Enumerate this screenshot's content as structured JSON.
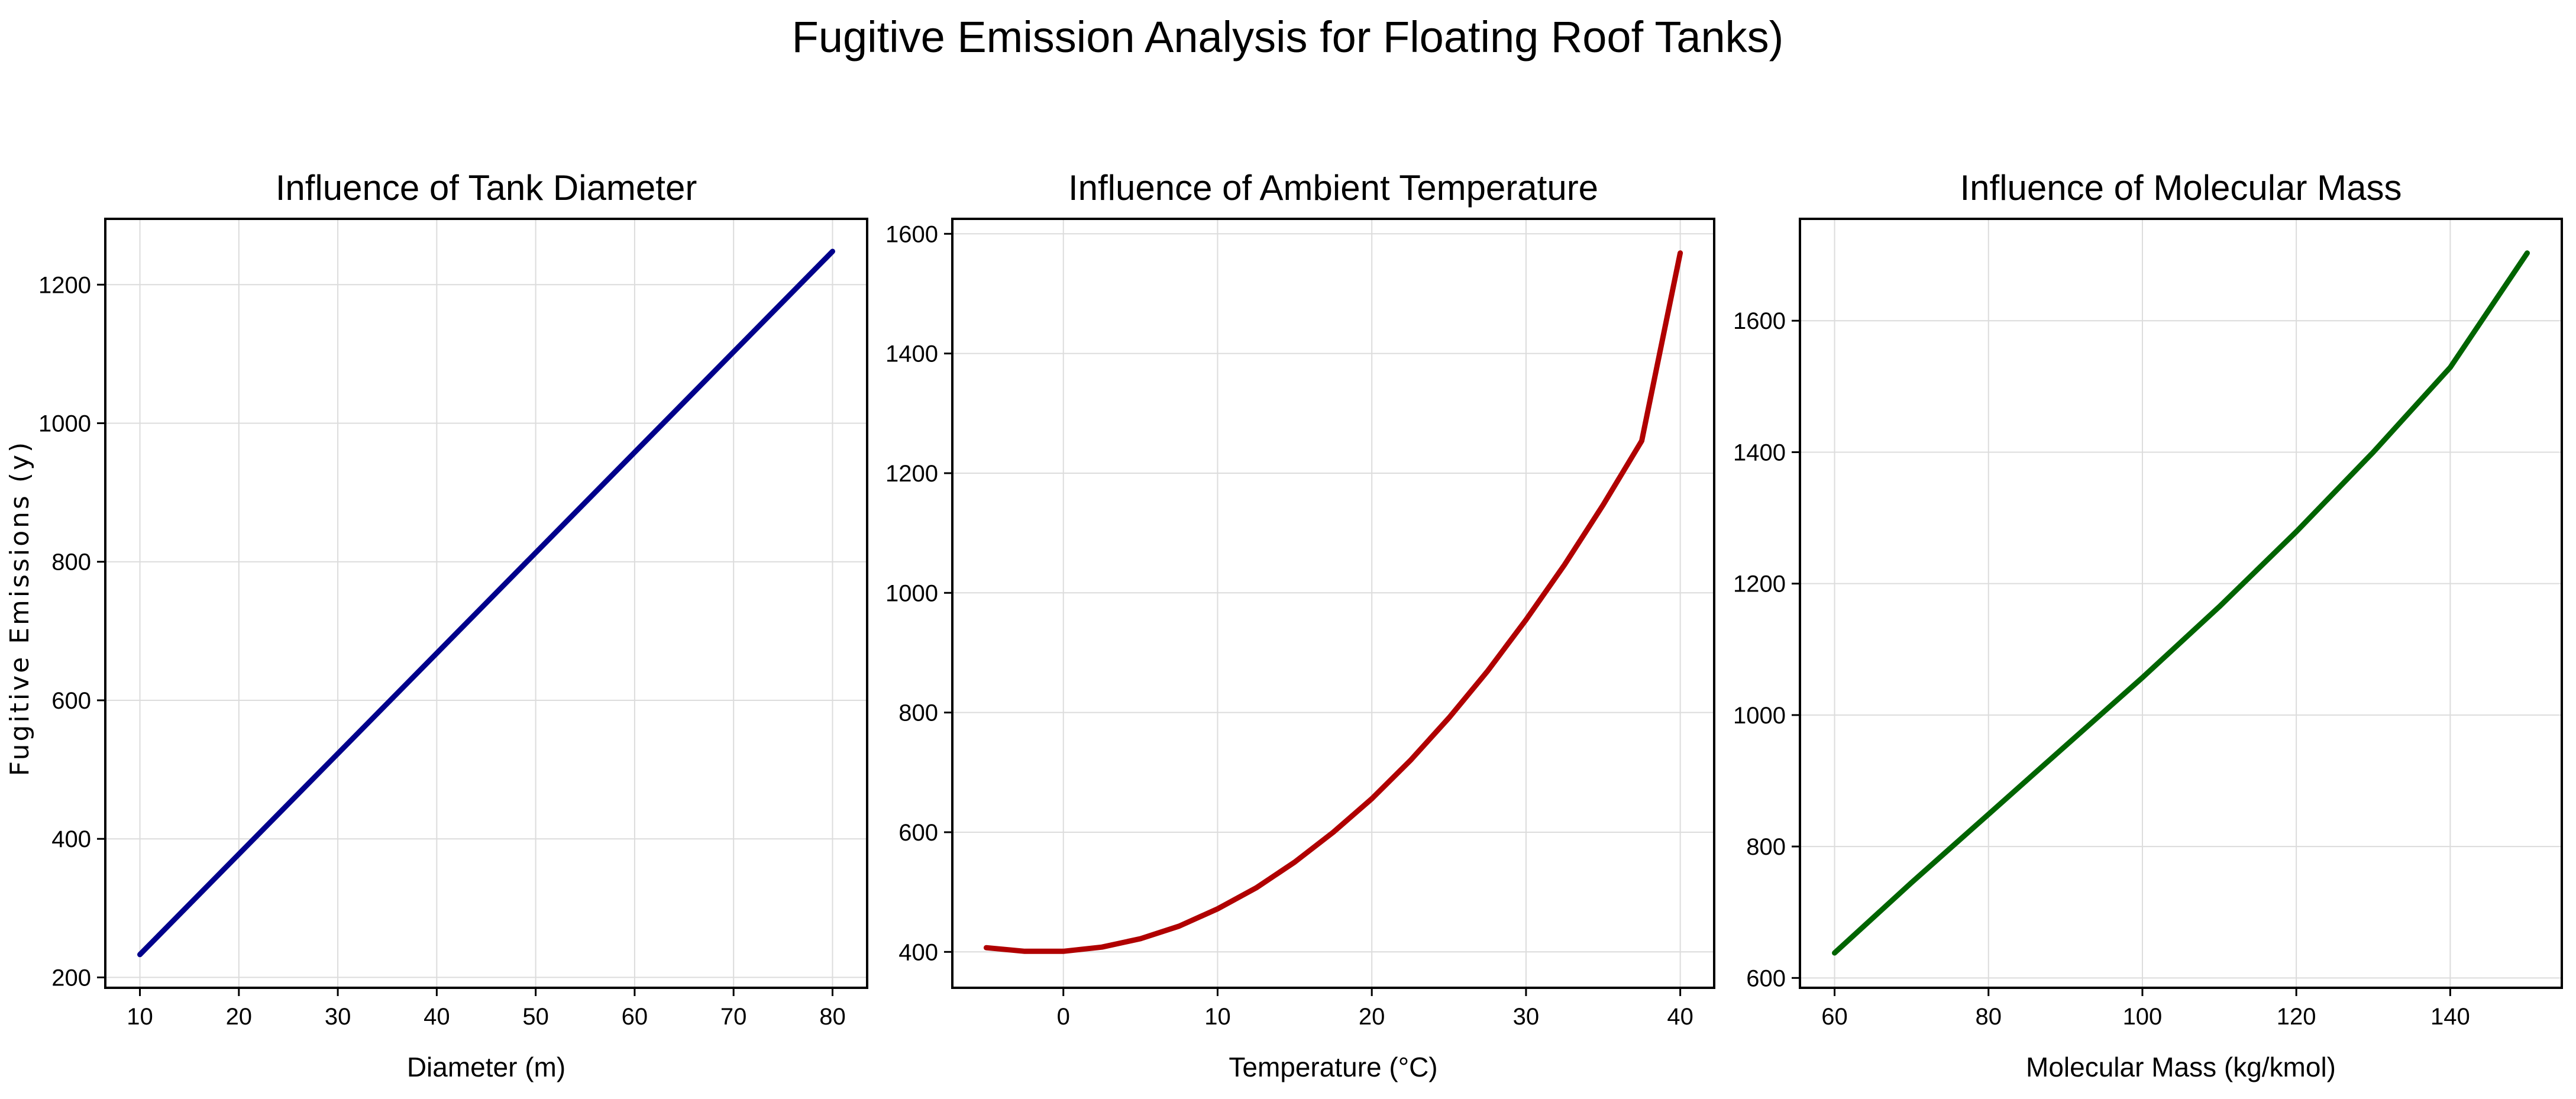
{
  "figure_title": "Fugitive Emission Analysis for Floating Roof Tanks)",
  "shared_ylabel": "Fugitive Emissions (y)",
  "chart_data": [
    {
      "type": "line",
      "title": "Influence of Tank Diameter",
      "xlabel": "Diameter (m)",
      "ylabel": "Fugitive Emissions (y)",
      "xlim": [
        6.5,
        83.5
      ],
      "ylim": [
        185,
        1295
      ],
      "xticks": [
        10,
        20,
        30,
        40,
        50,
        60,
        70,
        80
      ],
      "yticks": [
        200,
        400,
        600,
        800,
        1000,
        1200
      ],
      "grid": true,
      "color": "#00008b",
      "series": [
        {
          "x": [
            10,
            20,
            30,
            40,
            50,
            60,
            70,
            80
          ],
          "y": [
            233,
            378,
            523,
            668,
            813,
            958,
            1103,
            1248
          ]
        }
      ]
    },
    {
      "type": "line",
      "title": "Influence of Ambient Temperature",
      "xlabel": "Temperature (°C)",
      "ylabel": "",
      "xlim": [
        -7.2,
        42.2
      ],
      "ylim": [
        340,
        1625
      ],
      "xticks": [
        0,
        10,
        20,
        30,
        40
      ],
      "yticks": [
        400,
        600,
        800,
        1000,
        1200,
        1400,
        1600
      ],
      "grid": true,
      "color": "#b00000",
      "series": [
        {
          "x": [
            -5,
            -2.5,
            0,
            2.5,
            5,
            7.5,
            10,
            12.5,
            15,
            17.5,
            20,
            22.5,
            25,
            27.5,
            30,
            32.5,
            35,
            37.5,
            40
          ],
          "y": [
            407,
            401,
            401,
            408,
            422,
            443,
            472,
            507,
            550,
            600,
            656,
            720,
            791,
            869,
            955,
            1047,
            1147,
            1254,
            1568
          ]
        }
      ]
    },
    {
      "type": "line",
      "title": "Influence of Molecular Mass",
      "xlabel": "Molecular Mass (kg/kmol)",
      "ylabel": "",
      "xlim": [
        55.5,
        154.5
      ],
      "ylim": [
        585,
        1755
      ],
      "xticks": [
        60,
        80,
        100,
        120,
        140
      ],
      "yticks": [
        600,
        800,
        1000,
        1200,
        1400,
        1600
      ],
      "grid": true,
      "color": "#006400",
      "series": [
        {
          "x": [
            60,
            70,
            80,
            90,
            100,
            110,
            120,
            130,
            140,
            150
          ],
          "y": [
            638,
            745,
            849,
            953,
            1057,
            1165,
            1279,
            1400,
            1529,
            1703
          ]
        }
      ]
    }
  ]
}
